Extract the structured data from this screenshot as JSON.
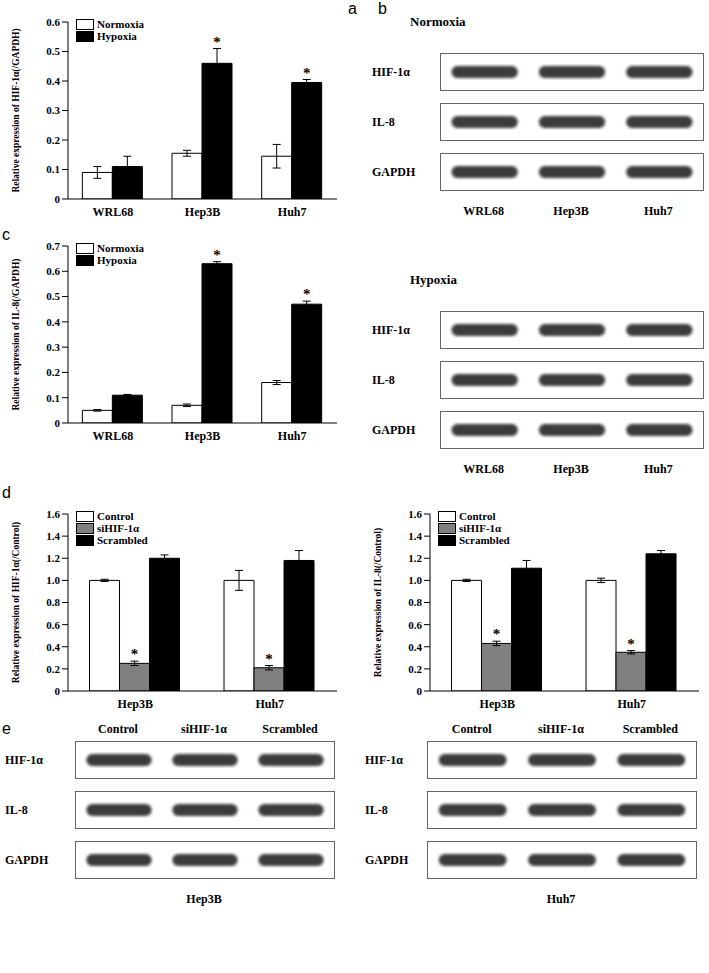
{
  "chart_data": [
    {
      "panel": "a",
      "type": "bar",
      "categories": [
        "WRL68",
        "Hep3B",
        "Huh7"
      ],
      "y_label": "Relative expression of HIF-1α(/GAPDH)",
      "series": [
        {
          "name": "Normoxia",
          "color": "#ffffff",
          "values": [
            0.09,
            0.155,
            0.145
          ],
          "errors": [
            0.02,
            0.01,
            0.04
          ]
        },
        {
          "name": "Hypoxia",
          "color": "#000000",
          "values": [
            0.11,
            0.46,
            0.395
          ],
          "errors": [
            0.035,
            0.05,
            0.01
          ]
        }
      ],
      "annotations": [
        {
          "text": "*",
          "series": "Hypoxia",
          "category": "Hep3B"
        },
        {
          "text": "*",
          "series": "Hypoxia",
          "category": "Huh7"
        }
      ],
      "ylim": [
        0,
        0.6
      ],
      "yticks": [
        0,
        0.1,
        0.2,
        0.3,
        0.4,
        0.5,
        0.6
      ],
      "legend": "upper left"
    },
    {
      "panel": "c",
      "type": "bar",
      "categories": [
        "WRL68",
        "Hep3B",
        "Huh7"
      ],
      "y_label": "Relative expression of IL-8(/GAPDH)",
      "series": [
        {
          "name": "Normoxia",
          "color": "#ffffff",
          "values": [
            0.05,
            0.07,
            0.16
          ],
          "errors": [
            0.003,
            0.005,
            0.008
          ]
        },
        {
          "name": "Hypoxia",
          "color": "#000000",
          "values": [
            0.11,
            0.63,
            0.47
          ],
          "errors": [
            0.003,
            0.008,
            0.012
          ]
        }
      ],
      "annotations": [
        {
          "text": "*",
          "series": "Hypoxia",
          "category": "Hep3B"
        },
        {
          "text": "*",
          "series": "Hypoxia",
          "category": "Huh7"
        }
      ],
      "ylim": [
        0,
        0.7
      ],
      "yticks": [
        0,
        0.1,
        0.2,
        0.3,
        0.4,
        0.5,
        0.6,
        0.7
      ],
      "legend": "upper left"
    },
    {
      "panel": "d",
      "type": "bar",
      "categories": [
        "Hep3B",
        "Huh7"
      ],
      "y_label": "Relative expression of HIF-1α(/Control)",
      "series": [
        {
          "name": "Control",
          "color": "#ffffff",
          "values": [
            1.0,
            1.0
          ],
          "errors": [
            0.01,
            0.09
          ]
        },
        {
          "name": "siHIF-1α",
          "color": "#808080",
          "values": [
            0.25,
            0.21
          ],
          "errors": [
            0.02,
            0.02
          ]
        },
        {
          "name": "Scrambled",
          "color": "#000000",
          "values": [
            1.2,
            1.18
          ],
          "errors": [
            0.03,
            0.09
          ]
        }
      ],
      "annotations": [
        {
          "text": "*",
          "series": "siHIF-1α",
          "category": "Hep3B"
        },
        {
          "text": "*",
          "series": "siHIF-1α",
          "category": "Huh7"
        }
      ],
      "ylim": [
        0,
        1.6
      ],
      "yticks": [
        0,
        0.2,
        0.4,
        0.6,
        0.8,
        {
          "value": 1,
          "label": "1.0"
        },
        1.2,
        1.4,
        1.6
      ],
      "legend": "upper left"
    },
    {
      "type": "bar",
      "categories": [
        "Hep3B",
        "Huh7"
      ],
      "y_label": "Relative expression of IL-8(/Control)",
      "series": [
        {
          "name": "Control",
          "color": "#ffffff",
          "values": [
            1.0,
            1.0
          ],
          "errors": [
            0.01,
            0.02
          ]
        },
        {
          "name": "siHIF-1α",
          "color": "#808080",
          "values": [
            0.43,
            0.35
          ],
          "errors": [
            0.02,
            0.015
          ]
        },
        {
          "name": "Scrambled",
          "color": "#000000",
          "values": [
            1.11,
            1.24
          ],
          "errors": [
            0.07,
            0.03
          ]
        }
      ],
      "annotations": [
        {
          "text": "*",
          "series": "siHIF-1α",
          "category": "Hep3B"
        },
        {
          "text": "*",
          "series": "siHIF-1α",
          "category": "Huh7"
        }
      ],
      "ylim": [
        0,
        1.6
      ],
      "yticks": [
        0,
        0.2,
        0.4,
        0.6,
        0.8,
        {
          "value": 1,
          "label": "1.0"
        },
        1.2,
        1.4,
        1.6
      ],
      "legend": "upper left"
    }
  ],
  "blots": [
    {
      "panel": "b",
      "title": "Normoxia",
      "rows": [
        "HIF-1α",
        "IL-8",
        "GAPDH"
      ],
      "lanes": [
        "WRL68",
        "Hep3B",
        "Huh7"
      ]
    },
    {
      "title": "Hypoxia",
      "rows": [
        "HIF-1α",
        "IL-8",
        "GAPDH"
      ],
      "lanes": [
        "WRL68",
        "Hep3B",
        "Huh7"
      ]
    },
    {
      "panel": "e",
      "rows": [
        "HIF-1α",
        "IL-8",
        "GAPDH"
      ],
      "lanes": [
        "Control",
        "siHIF-1α",
        "Scrambled"
      ],
      "caption": "Hep3B"
    },
    {
      "rows": [
        "HIF-1α",
        "IL-8",
        "GAPDH"
      ],
      "lanes": [
        "Control",
        "siHIF-1α",
        "Scrambled"
      ],
      "caption": "Huh7"
    }
  ]
}
